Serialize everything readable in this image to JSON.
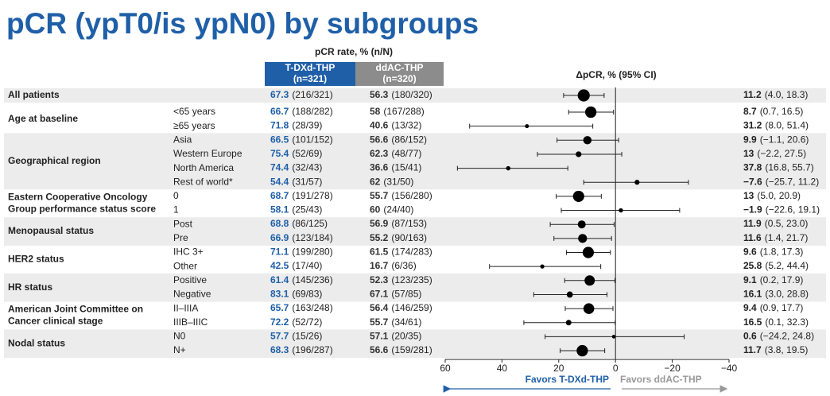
{
  "chart_data": {
    "type": "forest",
    "title": "pCR (ypT0/is ypN0) by subgroups",
    "rate_header": "pCR rate, % (n/N)",
    "effect_header": "ΔpCR, % (95% CI)",
    "arms": [
      {
        "name": "T-DXd-THP",
        "n": "(n=321)",
        "color": "#1f5fa8"
      },
      {
        "name": "ddAC-THP",
        "n": "(n=320)",
        "color": "#8c8c8c"
      }
    ],
    "xlim": [
      60,
      -40
    ],
    "xticks": [
      60,
      40,
      20,
      0,
      {
        "value": -20,
        "label": "−20"
      },
      {
        "value": -40,
        "label": "−40"
      }
    ],
    "favors": [
      "Favors T-DXd-THP",
      "Favors ddAC-THP"
    ],
    "groups": [
      {
        "label": [
          "All patients"
        ],
        "rows": [
          {
            "tdxd": 67.3,
            "tdxd_n": "(216/321)",
            "ddac": 56.3,
            "ddac_n": "(180/320)",
            "delta": 11.2,
            "ci": [
              4.0,
              18.3
            ],
            "ci_label": "(4.0, 18.3)"
          }
        ]
      },
      {
        "label": [
          "Age at baseline"
        ],
        "rows": [
          {
            "subgroup": "<65 years",
            "tdxd": 66.7,
            "tdxd_n": "(188/282)",
            "ddac": 58.0,
            "ddac_n": "(167/288)",
            "delta": 8.7,
            "ci": [
              0.7,
              16.5
            ],
            "ci_label": "(0.7, 16.5)"
          },
          {
            "subgroup": "≥65 years",
            "tdxd": 71.8,
            "tdxd_n": "(28/39)",
            "ddac": 40.6,
            "ddac_n": "(13/32)",
            "delta": 31.2,
            "ci": [
              8.0,
              51.4
            ],
            "ci_label": "(8.0, 51.4)"
          }
        ]
      },
      {
        "label": [
          "Geographical region"
        ],
        "rows": [
          {
            "subgroup": "Asia",
            "tdxd": 66.5,
            "tdxd_n": "(101/152)",
            "ddac": 56.6,
            "ddac_n": "(86/152)",
            "delta": 9.9,
            "ci": [
              -1.1,
              20.6
            ],
            "ci_label": "(−1.1, 20.6)"
          },
          {
            "subgroup": "Western Europe",
            "tdxd": 75.4,
            "tdxd_n": "(52/69)",
            "ddac": 62.3,
            "ddac_n": "(48/77)",
            "delta": 13.0,
            "ci": [
              -2.2,
              27.5
            ],
            "ci_label": "(−2.2, 27.5)"
          },
          {
            "subgroup": "North America",
            "tdxd": 74.4,
            "tdxd_n": "(32/43)",
            "ddac": 36.6,
            "ddac_n": "(15/41)",
            "delta": 37.8,
            "ci": [
              16.8,
              55.7
            ],
            "ci_label": "(16.8, 55.7)"
          },
          {
            "subgroup": "Rest of world*",
            "tdxd": 54.4,
            "tdxd_n": "(31/57)",
            "ddac": 62.0,
            "ddac_n": "(31/50)",
            "delta": -7.6,
            "delta_label": "−7.6",
            "ci": [
              -25.7,
              11.2
            ],
            "ci_label": "(−25.7, 11.2)"
          }
        ]
      },
      {
        "label": [
          "Eastern Cooperative Oncology",
          "Group performance status score"
        ],
        "rows": [
          {
            "subgroup": "0",
            "tdxd": 68.7,
            "tdxd_n": "(191/278)",
            "ddac": 55.7,
            "ddac_n": "(156/280)",
            "delta": 13.0,
            "ci": [
              5.0,
              20.9
            ],
            "ci_label": "(5.0, 20.9)"
          },
          {
            "subgroup": "1",
            "tdxd": 58.1,
            "tdxd_n": "(25/43)",
            "ddac": 60.0,
            "ddac_n": "(24/40)",
            "delta": -1.9,
            "delta_label": "−1.9",
            "ci": [
              -22.6,
              19.1
            ],
            "ci_label": "(−22.6, 19.1)"
          }
        ]
      },
      {
        "label": [
          "Menopausal status"
        ],
        "rows": [
          {
            "subgroup": "Post",
            "tdxd": 68.8,
            "tdxd_n": "(86/125)",
            "ddac": 56.9,
            "ddac_n": "(87/153)",
            "delta": 11.9,
            "ci": [
              0.5,
              23.0
            ],
            "ci_label": "(0.5, 23.0)"
          },
          {
            "subgroup": "Pre",
            "tdxd": 66.9,
            "tdxd_n": "(123/184)",
            "ddac": 55.2,
            "ddac_n": "(90/163)",
            "delta": 11.6,
            "ci": [
              1.4,
              21.7
            ],
            "ci_label": "(1.4, 21.7)"
          }
        ]
      },
      {
        "label": [
          "HER2 status"
        ],
        "rows": [
          {
            "subgroup": "IHC 3+",
            "tdxd": 71.1,
            "tdxd_n": "(199/280)",
            "ddac": 61.5,
            "ddac_n": "(174/283)",
            "delta": 9.6,
            "ci": [
              1.8,
              17.3
            ],
            "ci_label": "(1.8, 17.3)"
          },
          {
            "subgroup": "Other",
            "tdxd": 42.5,
            "tdxd_n": "(17/40)",
            "ddac": 16.7,
            "ddac_n": "(6/36)",
            "delta": 25.8,
            "ci": [
              5.2,
              44.4
            ],
            "ci_label": "(5.2, 44.4)"
          }
        ]
      },
      {
        "label": [
          "HR status"
        ],
        "rows": [
          {
            "subgroup": "Positive",
            "tdxd": 61.4,
            "tdxd_n": "(145/236)",
            "ddac": 52.3,
            "ddac_n": "(123/235)",
            "delta": 9.1,
            "ci": [
              0.2,
              17.9
            ],
            "ci_label": "(0.2, 17.9)"
          },
          {
            "subgroup": "Negative",
            "tdxd": 83.1,
            "tdxd_n": "(69/83)",
            "ddac": 67.1,
            "ddac_n": "(57/85)",
            "delta": 16.1,
            "ci": [
              3.0,
              28.8
            ],
            "ci_label": "(3.0, 28.8)"
          }
        ]
      },
      {
        "label": [
          "American Joint Committee on",
          "Cancer clinical stage"
        ],
        "rows": [
          {
            "subgroup": "II–IIIA",
            "tdxd": 65.7,
            "tdxd_n": "(163/248)",
            "ddac": 56.4,
            "ddac_n": "(146/259)",
            "delta": 9.4,
            "ci": [
              0.9,
              17.7
            ],
            "ci_label": "(0.9, 17.7)"
          },
          {
            "subgroup": "IIIB–IIIC",
            "tdxd": 72.2,
            "tdxd_n": "(52/72)",
            "ddac": 55.7,
            "ddac_n": "(34/61)",
            "delta": 16.5,
            "ci": [
              0.1,
              32.3
            ],
            "ci_label": "(0.1, 32.3)"
          }
        ]
      },
      {
        "label": [
          "Nodal status"
        ],
        "rows": [
          {
            "subgroup": "N0",
            "tdxd": 57.7,
            "tdxd_n": "(15/26)",
            "ddac": 57.1,
            "ddac_n": "(20/35)",
            "delta": 0.6,
            "ci": [
              -24.2,
              24.8
            ],
            "ci_label": "(−24.2, 24.8)"
          },
          {
            "subgroup": "N+",
            "tdxd": 68.3,
            "tdxd_n": "(196/287)",
            "ddac": 56.6,
            "ddac_n": "(159/281)",
            "delta": 11.7,
            "ci": [
              3.8,
              19.5
            ],
            "ci_label": "(3.8, 19.5)"
          }
        ]
      }
    ]
  }
}
